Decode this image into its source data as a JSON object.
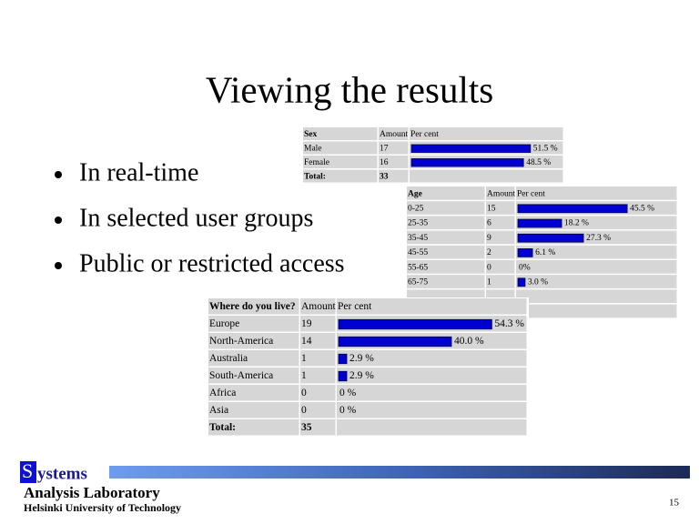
{
  "title": "Viewing the results",
  "bullets": [
    "In real-time",
    "In selected user groups",
    "Public or restricted access"
  ],
  "tables": [
    {
      "headers": [
        "Sex",
        "Amount",
        "Per cent"
      ],
      "rows": [
        {
          "label": "Male",
          "amount": 17,
          "percent": 51.5,
          "percent_label": "51.5 %"
        },
        {
          "label": "Female",
          "amount": 16,
          "percent": 48.5,
          "percent_label": "48.5 %"
        }
      ],
      "total": {
        "label": "Total:",
        "amount": 33
      }
    },
    {
      "headers": [
        "Age",
        "Amount",
        "Per cent"
      ],
      "rows": [
        {
          "label": "0-25",
          "amount": 15,
          "percent": 45.5,
          "percent_label": "45.5 %"
        },
        {
          "label": "25-35",
          "amount": 6,
          "percent": 18.2,
          "percent_label": "18.2 %"
        },
        {
          "label": "35-45",
          "amount": 9,
          "percent": 27.3,
          "percent_label": "27.3 %"
        },
        {
          "label": "45-55",
          "amount": 2,
          "percent": 6.1,
          "percent_label": "6.1 %"
        },
        {
          "label": "55-65",
          "amount": 0,
          "percent": 0,
          "percent_label": "0%"
        },
        {
          "label": "65-75",
          "amount": 1,
          "percent": 3.0,
          "percent_label": "3.0 %"
        }
      ]
    },
    {
      "headers": [
        "Where do you live?",
        "Amount",
        "Per cent"
      ],
      "rows": [
        {
          "label": "Europe",
          "amount": 19,
          "percent": 54.3,
          "percent_label": "54.3 %"
        },
        {
          "label": "North-America",
          "amount": 14,
          "percent": 40.0,
          "percent_label": "40.0 %"
        },
        {
          "label": "Australia",
          "amount": 1,
          "percent": 2.9,
          "percent_label": "2.9 %"
        },
        {
          "label": "South-America",
          "amount": 1,
          "percent": 2.9,
          "percent_label": "2.9 %"
        },
        {
          "label": "Africa",
          "amount": 0,
          "percent": 0,
          "percent_label": "0 %"
        },
        {
          "label": "Asia",
          "amount": 0,
          "percent": 0,
          "percent_label": "0 %"
        }
      ],
      "total": {
        "label": "Total:",
        "amount": 35
      }
    }
  ],
  "footer": {
    "logo_initial": "S",
    "logo_rest": "ystems",
    "lab": "Analysis Laboratory",
    "university": "Helsinki University of Technology",
    "page_number": 15
  }
}
